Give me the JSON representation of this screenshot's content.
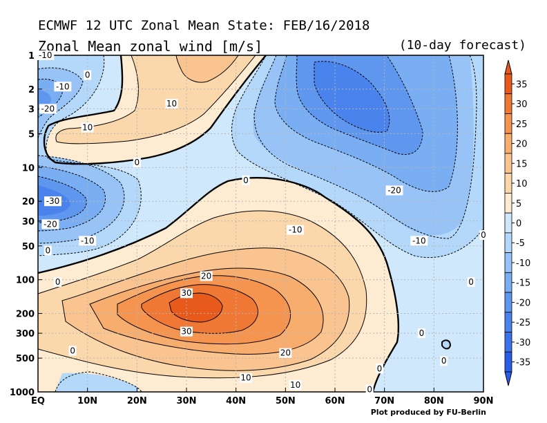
{
  "header": {
    "title": "ECMWF 12 UTC Zonal Mean State: FEB/16/2018",
    "subtitle": "Zonal Mean zonal wind [m/s]",
    "forecast": "(10-day forecast)"
  },
  "footer": {
    "credit": "Plot produced by FU-Berlin"
  },
  "chart_data": {
    "type": "contour",
    "title": "ECMWF 12 UTC Zonal Mean State: FEB/16/2018",
    "subtitle": "Zonal Mean zonal wind [m/s]",
    "x_ticks": [
      "EQ",
      "10N",
      "20N",
      "30N",
      "40N",
      "50N",
      "60N",
      "70N",
      "80N",
      "90N"
    ],
    "x_range": [
      0,
      90
    ],
    "y_ticks": [
      "1",
      "2",
      "3",
      "5",
      "10",
      "20",
      "30",
      "50",
      "100",
      "200",
      "300",
      "500",
      "1000"
    ],
    "y_range": [
      1000,
      1
    ],
    "y_scale": "log",
    "grid": true,
    "colorbar": {
      "levels": [
        35,
        30,
        25,
        20,
        15,
        10,
        5,
        0,
        -5,
        -10,
        -15,
        -20,
        -25,
        -30,
        -35
      ],
      "labels": [
        "35",
        "30",
        "25",
        "20",
        "15",
        "10",
        "5",
        "0",
        "-5",
        "-10",
        "-15",
        "-20",
        "-25",
        "-30",
        "-35"
      ],
      "colors": [
        "#e85a1b",
        "#ef7835",
        "#f4944f",
        "#f7ad6d",
        "#f9c48f",
        "#fbd7ac",
        "#fdebd2",
        "#cfe8fb",
        "#b3d8fa",
        "#97c3f6",
        "#7aaef2",
        "#5f97ee",
        "#4b83ec",
        "#3a73ea",
        "#2b5ee8"
      ]
    },
    "contour_labels": [
      {
        "text": "-10",
        "lat": 1.5,
        "p": 1
      },
      {
        "text": "0",
        "lat": 10,
        "p": 1.5
      },
      {
        "text": "-10",
        "lat": 5,
        "p": 1.9
      },
      {
        "text": "-20",
        "lat": 2,
        "p": 3
      },
      {
        "text": "10",
        "lat": 27,
        "p": 2.7
      },
      {
        "text": "10",
        "lat": 10,
        "p": 4.4
      },
      {
        "text": "0",
        "lat": 20,
        "p": 9
      },
      {
        "text": "-30",
        "lat": 3,
        "p": 20
      },
      {
        "text": "-20",
        "lat": 2.5,
        "p": 32
      },
      {
        "text": "-10",
        "lat": 10,
        "p": 45
      },
      {
        "text": "0",
        "lat": 2,
        "p": 55
      },
      {
        "text": "0",
        "lat": 4,
        "p": 105
      },
      {
        "text": "0",
        "lat": 42,
        "p": 13
      },
      {
        "text": "-20",
        "lat": 72,
        "p": 16
      },
      {
        "text": "-10",
        "lat": 77,
        "p": 45
      },
      {
        "text": "-10",
        "lat": 52,
        "p": 36
      },
      {
        "text": "20",
        "lat": 34,
        "p": 93
      },
      {
        "text": "30",
        "lat": 30,
        "p": 132
      },
      {
        "text": "30",
        "lat": 30,
        "p": 290
      },
      {
        "text": "20",
        "lat": 50,
        "p": 450
      },
      {
        "text": "10",
        "lat": 42,
        "p": 750
      },
      {
        "text": "10",
        "lat": 52,
        "p": 870
      },
      {
        "text": "0",
        "lat": 7,
        "p": 430
      },
      {
        "text": "0",
        "lat": 87.5,
        "p": 105
      },
      {
        "text": "0",
        "lat": 77.5,
        "p": 300
      },
      {
        "text": "0",
        "lat": 82,
        "p": 530
      },
      {
        "text": "0",
        "lat": 69,
        "p": 620
      },
      {
        "text": "0",
        "lat": 67,
        "p": 950
      },
      {
        "text": "0",
        "lat": 90,
        "p": 40
      }
    ]
  }
}
